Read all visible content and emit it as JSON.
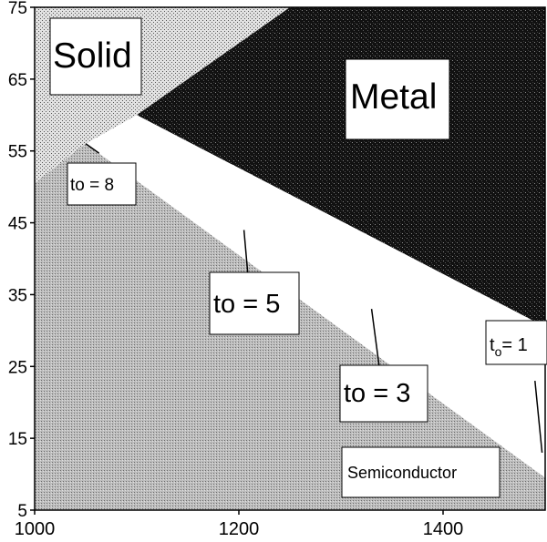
{
  "chart_data": {
    "type": "phase-diagram",
    "x_range": [
      1000,
      1500
    ],
    "y_range": [
      5,
      75
    ],
    "x_ticks": [
      {
        "value": 1000,
        "label": "1000"
      },
      {
        "value": 1200,
        "label": "1200"
      },
      {
        "value": 1400,
        "label": "1400"
      }
    ],
    "y_ticks": [
      {
        "value": 75,
        "label": "75"
      },
      {
        "value": 65,
        "label": "65"
      },
      {
        "value": 55,
        "label": "55"
      },
      {
        "value": 45,
        "label": "45"
      },
      {
        "value": 35,
        "label": "35"
      },
      {
        "value": 25,
        "label": "25"
      },
      {
        "value": 15,
        "label": "15"
      },
      {
        "value": 5,
        "label": "5"
      }
    ],
    "regions": {
      "solid": {
        "label": "Solid",
        "fill": "stipple-light",
        "polygon": [
          [
            1000,
            75
          ],
          [
            1250,
            75
          ],
          [
            1100,
            60
          ],
          [
            1000,
            50.5
          ]
        ]
      },
      "metal": {
        "label": "Metal",
        "fill": "stipple-dark",
        "polygon": [
          [
            1250,
            75
          ],
          [
            1500,
            75
          ],
          [
            1500,
            30.5
          ],
          [
            1100,
            60
          ]
        ]
      },
      "gap": {
        "label": "",
        "fill": "white",
        "polygon": [
          [
            1100,
            60
          ],
          [
            1500,
            30.5
          ],
          [
            1500,
            9.5
          ],
          [
            1050,
            56
          ]
        ]
      },
      "semiconductor": {
        "label": "Semiconductor",
        "fill": "stipple-medium",
        "polygon": [
          [
            1000,
            50.5
          ],
          [
            1050,
            56
          ],
          [
            1500,
            9.5
          ],
          [
            1500,
            5
          ],
          [
            1000,
            5
          ]
        ]
      }
    },
    "contours": [
      {
        "label": "to = 8",
        "path": [
          [
            1050,
            56
          ],
          [
            1063,
            54.7
          ]
        ]
      },
      {
        "label": "to = 5",
        "path": [
          [
            1205,
            44
          ],
          [
            1213,
            31
          ]
        ]
      },
      {
        "label": "to = 3",
        "path": [
          [
            1330,
            33
          ],
          [
            1343,
            19
          ]
        ]
      },
      {
        "label": "to = 1",
        "path": [
          [
            1490,
            23
          ],
          [
            1497,
            13
          ]
        ]
      }
    ],
    "labels": {
      "solid": "Solid",
      "metal": "Metal",
      "semiconductor": "Semiconductor",
      "to8": "to = 8",
      "to5": "to = 5",
      "to3": "to = 3",
      "to1_t": "t",
      "to1_sub": "o",
      "to1_rest": "= 1"
    }
  }
}
